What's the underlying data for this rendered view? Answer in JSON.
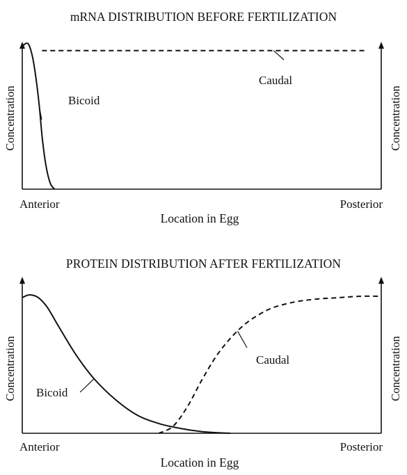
{
  "chart_data": [
    {
      "type": "line",
      "title": "mRNA DISTRIBUTION BEFORE FERTILIZATION",
      "xlabel": "Location in Egg",
      "ylabel_left": "Concentration",
      "ylabel_right": "Concentration",
      "x_tick_labels": [
        "Anterior",
        "Posterior"
      ],
      "xlim": [
        0,
        1
      ],
      "ylim": [
        0,
        1
      ],
      "series": [
        {
          "name": "Bicoid",
          "line_style": "solid",
          "x": [
            0.0,
            0.012,
            0.02,
            0.03,
            0.04,
            0.048,
            0.056,
            0.066,
            0.078,
            0.09
          ],
          "y": [
            0.97,
            0.99,
            0.97,
            0.88,
            0.72,
            0.55,
            0.34,
            0.16,
            0.04,
            0.0
          ]
        },
        {
          "name": "Caudal",
          "line_style": "dashed",
          "x": [
            0.055,
            0.96
          ],
          "y": [
            0.94,
            0.94
          ]
        }
      ]
    },
    {
      "type": "line",
      "title": "PROTEIN DISTRIBUTION AFTER FERTILIZATION",
      "xlabel": "Location in Egg",
      "ylabel_left": "Concentration",
      "ylabel_right": "Concentration",
      "x_tick_labels": [
        "Anterior",
        "Posterior"
      ],
      "xlim": [
        0,
        1
      ],
      "ylim": [
        0,
        1
      ],
      "series": [
        {
          "name": "Bicoid",
          "line_style": "solid",
          "x": [
            0.0,
            0.02,
            0.045,
            0.07,
            0.1,
            0.15,
            0.2,
            0.26,
            0.32,
            0.38,
            0.44,
            0.5,
            0.55,
            0.58
          ],
          "y": [
            0.97,
            0.99,
            0.97,
            0.9,
            0.77,
            0.56,
            0.39,
            0.24,
            0.13,
            0.07,
            0.035,
            0.012,
            0.003,
            0.0
          ]
        },
        {
          "name": "Caudal",
          "line_style": "dashed",
          "x": [
            0.38,
            0.42,
            0.46,
            0.5,
            0.54,
            0.58,
            0.62,
            0.66,
            0.7,
            0.76,
            0.82,
            0.88,
            0.94,
            1.0
          ],
          "y": [
            0.0,
            0.05,
            0.19,
            0.38,
            0.55,
            0.68,
            0.78,
            0.85,
            0.9,
            0.94,
            0.96,
            0.97,
            0.98,
            0.98
          ]
        }
      ]
    }
  ]
}
